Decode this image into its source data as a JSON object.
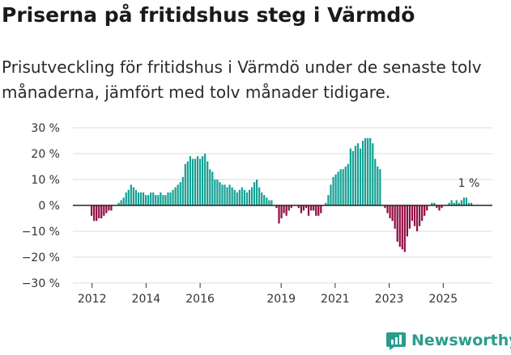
{
  "title": "Priserna på fritidshus steg i Värmdö",
  "subtitle": "Prisutveckling för fritidshus i Värmdö under de senaste tolv månaderna, jämfört med tolv månader tidigare.",
  "brand": "Newsworthy",
  "colors": {
    "positive": "#12a093",
    "negative": "#8f0c42",
    "grid": "#dddddd",
    "zero": "#222222",
    "brand": "#2b9c8c"
  },
  "chart_data": {
    "type": "bar",
    "title": "Priserna på fritidshus steg i Värmdö",
    "ylabel": "",
    "xlabel": "",
    "ylim": [
      -30,
      30
    ],
    "yticks": [
      30,
      20,
      10,
      0,
      -10,
      -20,
      -30
    ],
    "ytick_labels": [
      "30 %",
      "20 %",
      "10 %",
      "0 %",
      "−10 %",
      "−20 %",
      "−30 %"
    ],
    "xtick_labels": [
      "2012",
      "2014",
      "2016",
      "2019",
      "2021",
      "2023",
      "2025"
    ],
    "xtick_years": [
      2012,
      2014,
      2016,
      2019,
      2021,
      2023,
      2025
    ],
    "x_start": 2011.95,
    "x_end": 2026.1,
    "last_value_label": "1 %",
    "values": [
      -4,
      -6,
      -6,
      -5,
      -5,
      -4,
      -3,
      -2,
      -2,
      0,
      0,
      1,
      2,
      3,
      5,
      6,
      8,
      7,
      6,
      5,
      5,
      5,
      4,
      4,
      5,
      5,
      4,
      4,
      5,
      4,
      4,
      5,
      5,
      6,
      7,
      8,
      9,
      11,
      16,
      17,
      19,
      18,
      18,
      19,
      18,
      19,
      20,
      17,
      14,
      13,
      10,
      10,
      9,
      8,
      8,
      7,
      8,
      7,
      6,
      5,
      6,
      7,
      6,
      5,
      6,
      7,
      9,
      10,
      7,
      5,
      4,
      3,
      2,
      2,
      0,
      -1,
      -7,
      -5,
      -3,
      -4,
      -2,
      -1,
      0,
      0,
      -1,
      -3,
      -2,
      -1,
      -4,
      -2,
      -2,
      -4,
      -4,
      -3,
      0,
      1,
      4,
      8,
      11,
      12,
      13,
      14,
      14,
      15,
      16,
      22,
      21,
      23,
      24,
      22,
      25,
      26,
      26,
      26,
      24,
      18,
      15,
      14,
      0,
      -1,
      -3,
      -5,
      -6,
      -9,
      -14,
      -16,
      -17,
      -18,
      -12,
      -9,
      -6,
      -8,
      -10,
      -8,
      -6,
      -4,
      -2,
      0,
      1,
      1,
      -1,
      -2,
      -1,
      0,
      0,
      1,
      2,
      1,
      2,
      1,
      2,
      3,
      3,
      1,
      1
    ]
  }
}
